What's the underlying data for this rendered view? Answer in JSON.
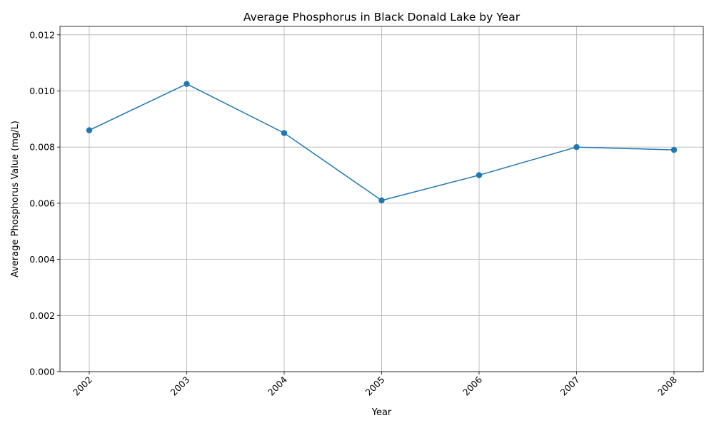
{
  "chart_data": {
    "type": "line",
    "title": "Average Phosphorus in Black Donald Lake by Year",
    "xlabel": "Year",
    "ylabel": "Average Phosphorus Value (mg/L)",
    "categories": [
      "2002",
      "2003",
      "2004",
      "2005",
      "2006",
      "2007",
      "2008"
    ],
    "series": [
      {
        "values": [
          0.0086,
          0.01025,
          0.0085,
          0.0061,
          0.007,
          0.008,
          0.0079
        ],
        "color": "#1f77b4",
        "marker": "circle"
      }
    ],
    "ylim": [
      0,
      0.0123
    ],
    "yticks": [
      "0.000",
      "0.002",
      "0.004",
      "0.006",
      "0.008",
      "0.010",
      "0.012"
    ],
    "ytick_values": [
      0,
      0.002,
      0.004,
      0.006,
      0.008,
      0.01,
      0.012
    ],
    "grid": true,
    "xtick_rotation": "45deg",
    "colors": {
      "grid": "#b0b0b0",
      "axes": "#000000",
      "line": "#1f77b4"
    }
  }
}
